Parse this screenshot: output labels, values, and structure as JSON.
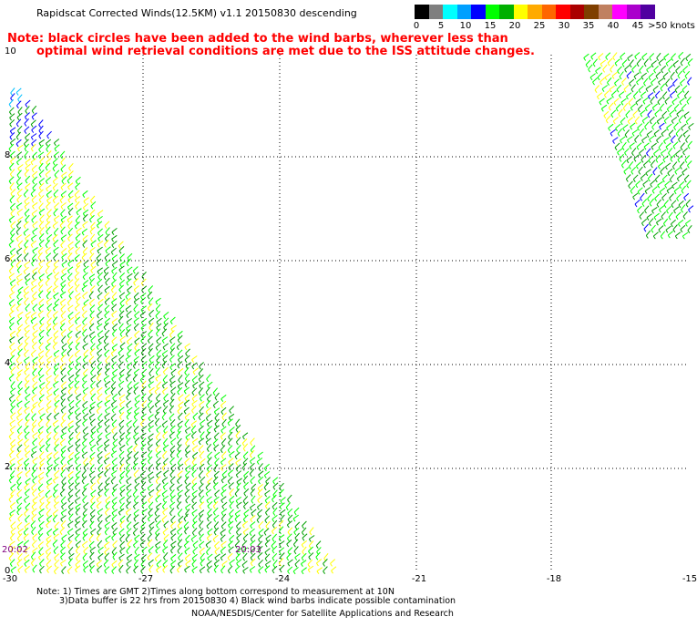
{
  "title": "Rapidscat Corrected Winds(12.5KM) v1.1 20150830 descending",
  "note": {
    "line1": "Note: black circles have been added to the wind barbs, wherever less than",
    "line2": "optimal wind retrieval conditions are met due to the ISS attitude changes."
  },
  "legend": {
    "colors": [
      "#000000",
      "#7f7f7f",
      "#00ffff",
      "#00a0ff",
      "#0000ff",
      "#00ff00",
      "#00b000",
      "#ffff00",
      "#ffaa00",
      "#ff6600",
      "#ff0000",
      "#aa0000",
      "#7f3f00",
      "#c08060",
      "#ff00ff",
      "#aa00cc",
      "#5000a0"
    ],
    "labels": [
      "0",
      "5",
      "10",
      "15",
      "20",
      "25",
      "30",
      "35",
      "40",
      "45",
      ">50 knots"
    ]
  },
  "axes": {
    "y_labels": [
      "10",
      "8",
      "6",
      "4",
      "2",
      "0"
    ],
    "x_labels": [
      "-30",
      "-27",
      "-24",
      "-21",
      "-18",
      "-15"
    ]
  },
  "time_labels": [
    "20:02",
    "20:03"
  ],
  "colors": {
    "note": "#ff0000",
    "grid": "#000000",
    "time_label": "#800080",
    "barb_yellow": "#ffff00",
    "barb_green": "#00ff00",
    "barb_darkgreen": "#00a000",
    "barb_blue": "#0000ff",
    "barb_cyan": "#00bfff"
  },
  "footer": {
    "line1": "Note: 1) Times are GMT 2)Times along bottom correspond to measurement at 10N",
    "line2": "3)Data buffer is 22 hrs from 20150830 4) Black wind barbs indicate possible contamination",
    "line3": "NOAA/NESDIS/Center for Satellite Applications and Research"
  }
}
